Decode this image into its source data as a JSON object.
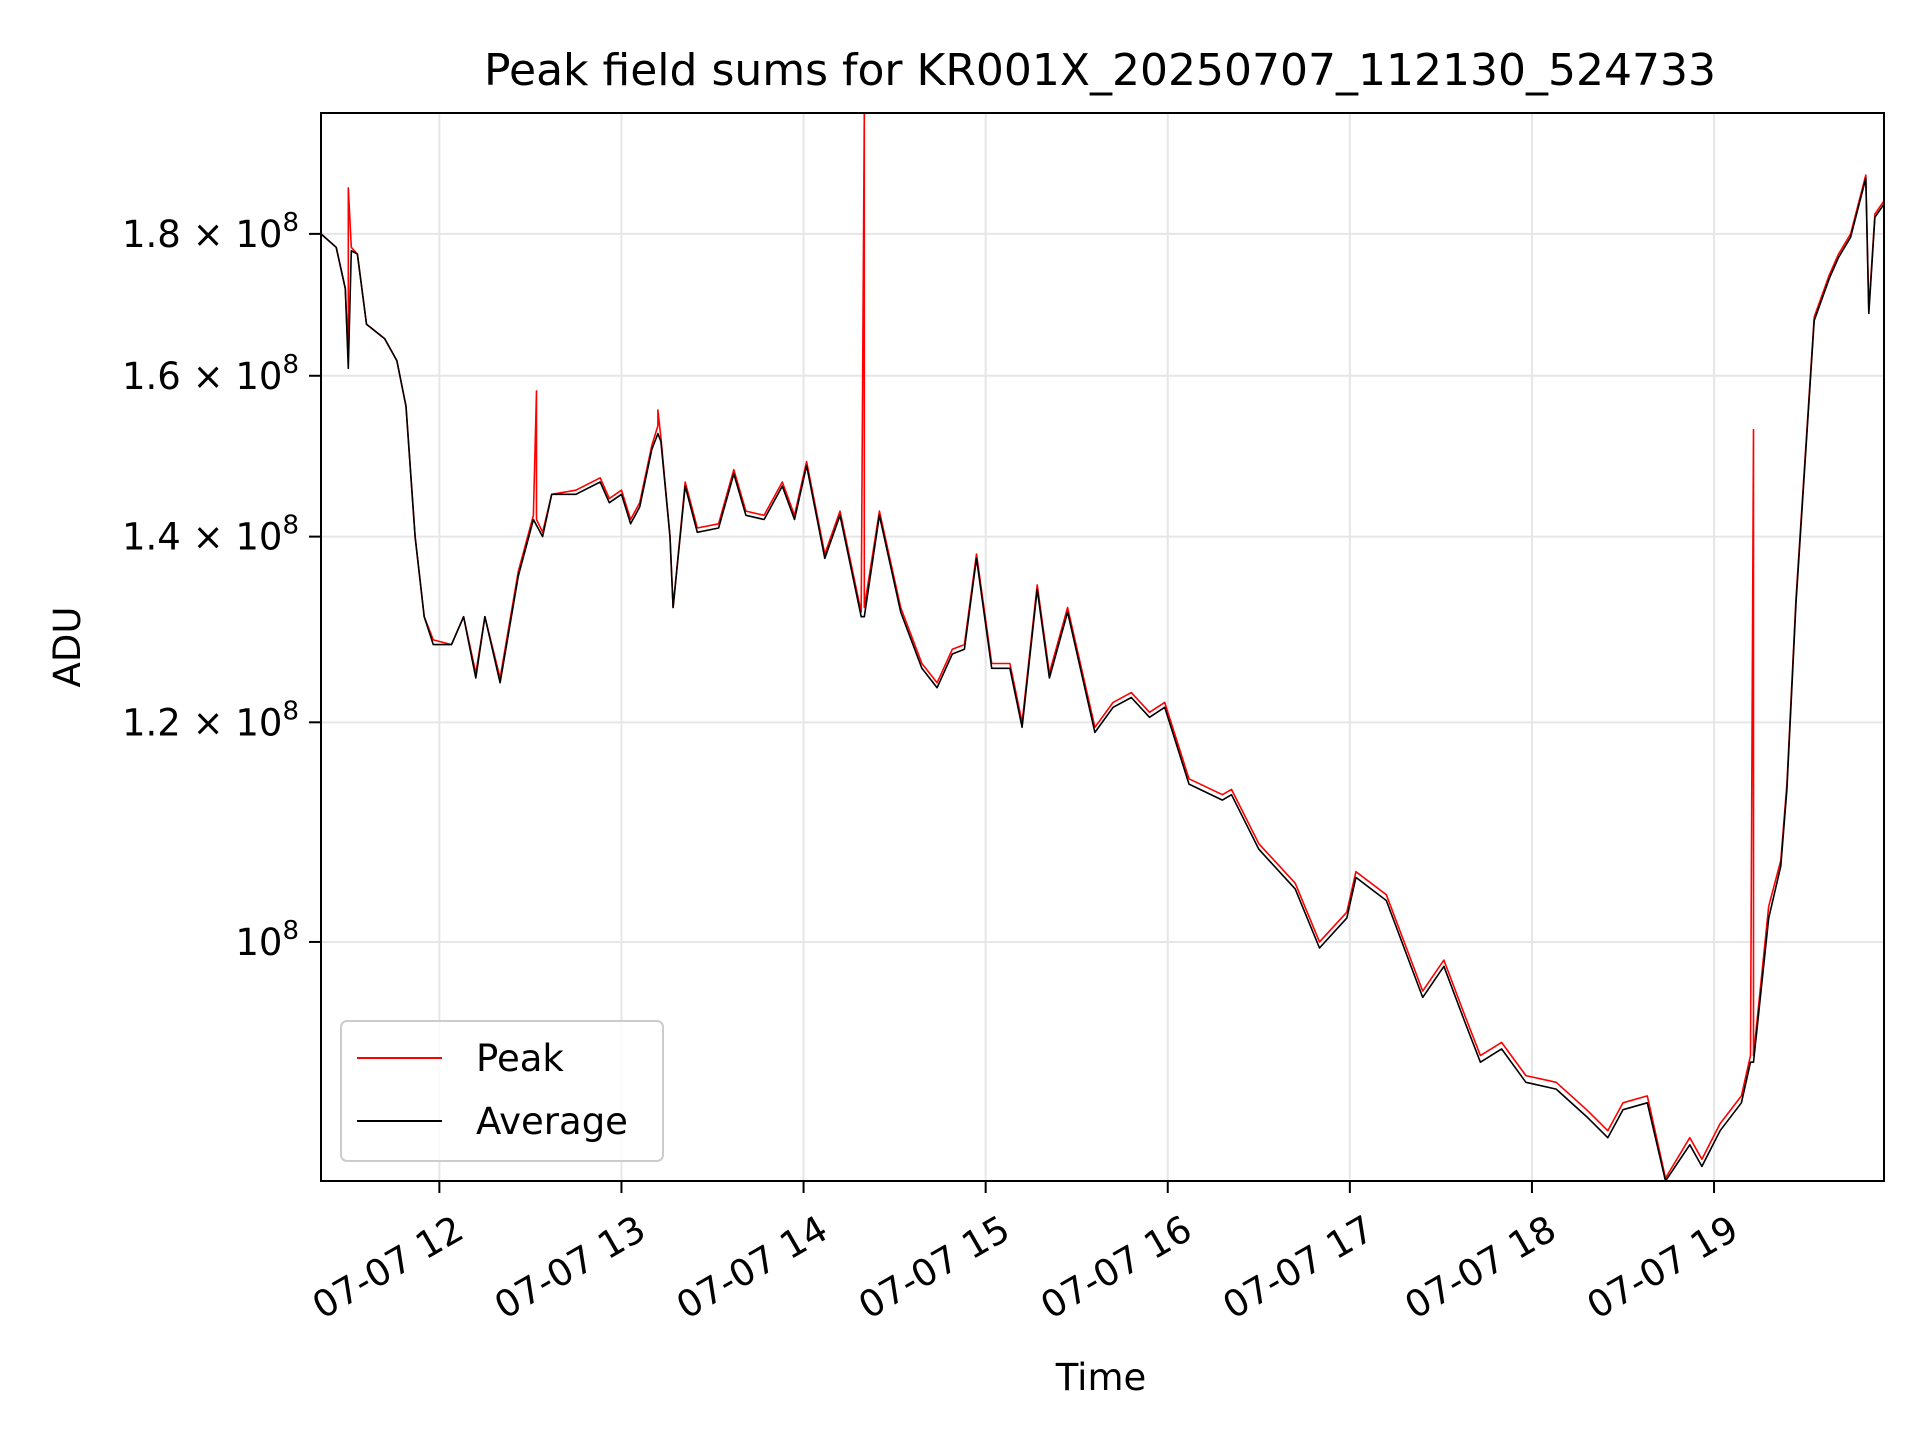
{
  "chart_data": {
    "type": "line",
    "title": "Peak field sums for KR001X_20250707_112130_524733",
    "xlabel": "Time",
    "ylabel": "ADU",
    "x_range": [
      "2025-07-07 11:21",
      "2025-07-07 19:56"
    ],
    "y_range": [
      82000000.0,
      199000000.0
    ],
    "y_scale": "log",
    "grid": true,
    "legend_position": "lower left",
    "x_ticks": [
      {
        "value": "2025-07-07 12:00",
        "label": "07-07 12"
      },
      {
        "value": "2025-07-07 13:00",
        "label": "07-07 13"
      },
      {
        "value": "2025-07-07 14:00",
        "label": "07-07 14"
      },
      {
        "value": "2025-07-07 15:00",
        "label": "07-07 15"
      },
      {
        "value": "2025-07-07 16:00",
        "label": "07-07 16"
      },
      {
        "value": "2025-07-07 17:00",
        "label": "07-07 17"
      },
      {
        "value": "2025-07-07 18:00",
        "label": "07-07 18"
      },
      {
        "value": "2025-07-07 19:00",
        "label": "07-07 19"
      }
    ],
    "y_ticks": [
      {
        "value": 100000000.0,
        "mantissa": "10",
        "exp": "8",
        "label": "10^8"
      },
      {
        "value": 120000000.0,
        "mantissa": "1.2 × 10",
        "exp": "8",
        "label": "1.2×10^8"
      },
      {
        "value": 140000000.0,
        "mantissa": "1.4 × 10",
        "exp": "8",
        "label": "1.4×10^8"
      },
      {
        "value": 160000000.0,
        "mantissa": "1.6 × 10",
        "exp": "8",
        "label": "1.6×10^8"
      },
      {
        "value": 180000000.0,
        "mantissa": "1.8 × 10",
        "exp": "8",
        "label": "1.8×10^8"
      }
    ],
    "series": [
      {
        "name": "Peak",
        "color": "#ff0000",
        "points": [
          [
            "2025-07-07 11:21",
            180000000.0
          ],
          [
            "2025-07-07 11:26",
            178000000.0
          ],
          [
            "2025-07-07 11:29",
            172000000.0
          ],
          [
            "2025-07-07 11:30",
            162000000.0
          ],
          [
            "2025-07-07 11:30",
            187000000.0
          ],
          [
            "2025-07-07 11:31",
            178000000.0
          ],
          [
            "2025-07-07 11:33",
            177000000.0
          ],
          [
            "2025-07-07 11:36",
            167000000.0
          ],
          [
            "2025-07-07 11:42",
            165000000.0
          ],
          [
            "2025-07-07 11:46",
            162000000.0
          ],
          [
            "2025-07-07 11:49",
            156000000.0
          ],
          [
            "2025-07-07 11:52",
            140000000.0
          ],
          [
            "2025-07-07 11:55",
            131000000.0
          ],
          [
            "2025-07-07 11:58",
            128500000.0
          ],
          [
            "2025-07-07 12:04",
            128000000.0
          ],
          [
            "2025-07-07 12:08",
            131000000.0
          ],
          [
            "2025-07-07 12:12",
            125000000.0
          ],
          [
            "2025-07-07 12:15",
            131000000.0
          ],
          [
            "2025-07-07 12:20",
            124500000.0
          ],
          [
            "2025-07-07 12:26",
            136000000.0
          ],
          [
            "2025-07-07 12:31",
            142500000.0
          ],
          [
            "2025-07-07 12:32",
            158000000.0
          ],
          [
            "2025-07-07 12:32",
            142000000.0
          ],
          [
            "2025-07-07 12:34",
            140500000.0
          ],
          [
            "2025-07-07 12:37",
            145000000.0
          ],
          [
            "2025-07-07 12:45",
            145500000.0
          ],
          [
            "2025-07-07 12:53",
            147000000.0
          ],
          [
            "2025-07-07 12:56",
            144500000.0
          ],
          [
            "2025-07-07 13:00",
            145500000.0
          ],
          [
            "2025-07-07 13:03",
            142000000.0
          ],
          [
            "2025-07-07 13:06",
            144000000.0
          ],
          [
            "2025-07-07 13:10",
            151000000.0
          ],
          [
            "2025-07-07 13:12",
            153500000.0
          ],
          [
            "2025-07-07 13:12",
            155500000.0
          ],
          [
            "2025-07-07 13:13",
            152000000.0
          ],
          [
            "2025-07-07 13:16",
            140000000.0
          ],
          [
            "2025-07-07 13:17",
            132000000.0
          ],
          [
            "2025-07-07 13:21",
            146500000.0
          ],
          [
            "2025-07-07 13:25",
            141000000.0
          ],
          [
            "2025-07-07 13:32",
            141500000.0
          ],
          [
            "2025-07-07 13:37",
            148000000.0
          ],
          [
            "2025-07-07 13:41",
            143000000.0
          ],
          [
            "2025-07-07 13:47",
            142500000.0
          ],
          [
            "2025-07-07 13:53",
            146500000.0
          ],
          [
            "2025-07-07 13:57",
            142500000.0
          ],
          [
            "2025-07-07 14:01",
            149000000.0
          ],
          [
            "2025-07-07 14:07",
            138000000.0
          ],
          [
            "2025-07-07 14:12",
            143000000.0
          ],
          [
            "2025-07-07 14:19",
            131500000.0
          ],
          [
            "2025-07-07 14:20",
            199000000.0
          ],
          [
            "2025-07-07 14:20",
            132000000.0
          ],
          [
            "2025-07-07 14:25",
            143000000.0
          ],
          [
            "2025-07-07 14:32",
            132000000.0
          ],
          [
            "2025-07-07 14:39",
            126000000.0
          ],
          [
            "2025-07-07 14:44",
            124000000.0
          ],
          [
            "2025-07-07 14:49",
            127500000.0
          ],
          [
            "2025-07-07 14:53",
            128000000.0
          ],
          [
            "2025-07-07 14:57",
            138000000.0
          ],
          [
            "2025-07-07 15:02",
            126000000.0
          ],
          [
            "2025-07-07 15:08",
            126000000.0
          ],
          [
            "2025-07-07 15:12",
            120000000.0
          ],
          [
            "2025-07-07 15:17",
            134500000.0
          ],
          [
            "2025-07-07 15:21",
            125000000.0
          ],
          [
            "2025-07-07 15:27",
            132000000.0
          ],
          [
            "2025-07-07 15:36",
            119500000.0
          ],
          [
            "2025-07-07 15:42",
            122000000.0
          ],
          [
            "2025-07-07 15:48",
            123000000.0
          ],
          [
            "2025-07-07 15:54",
            121000000.0
          ],
          [
            "2025-07-07 15:59",
            122000000.0
          ],
          [
            "2025-07-07 16:07",
            114500000.0
          ],
          [
            "2025-07-07 16:18",
            113000000.0
          ],
          [
            "2025-07-07 16:21",
            113500000.0
          ],
          [
            "2025-07-07 16:30",
            108500000.0
          ],
          [
            "2025-07-07 16:42",
            105000000.0
          ],
          [
            "2025-07-07 16:50",
            100000000.0
          ],
          [
            "2025-07-07 16:59",
            102500000.0
          ],
          [
            "2025-07-07 17:02",
            106000000.0
          ],
          [
            "2025-07-07 17:12",
            104000000.0
          ],
          [
            "2025-07-07 17:24",
            96000000.0
          ],
          [
            "2025-07-07 17:31",
            98500000.0
          ],
          [
            "2025-07-07 17:38",
            94000000.0
          ],
          [
            "2025-07-07 17:43",
            91000000.0
          ],
          [
            "2025-07-07 17:50",
            92000000.0
          ],
          [
            "2025-07-07 17:58",
            89500000.0
          ],
          [
            "2025-07-07 18:08",
            89000000.0
          ],
          [
            "2025-07-07 18:18",
            87000000.0
          ],
          [
            "2025-07-07 18:25",
            85500000.0
          ],
          [
            "2025-07-07 18:30",
            87500000.0
          ],
          [
            "2025-07-07 18:38",
            88000000.0
          ],
          [
            "2025-07-07 18:44",
            82200000.0
          ],
          [
            "2025-07-07 18:52",
            85000000.0
          ],
          [
            "2025-07-07 18:56",
            83500000.0
          ],
          [
            "2025-07-07 19:02",
            86000000.0
          ],
          [
            "2025-07-07 19:09",
            88000000.0
          ],
          [
            "2025-07-07 19:12",
            91000000.0
          ],
          [
            "2025-07-07 19:13",
            153000000.0
          ],
          [
            "2025-07-07 19:13",
            91000000.0
          ],
          [
            "2025-07-07 19:18",
            103000000.0
          ],
          [
            "2025-07-07 19:22",
            107000000.0
          ],
          [
            "2025-07-07 19:24",
            114000000.0
          ],
          [
            "2025-07-07 19:27",
            133000000.0
          ],
          [
            "2025-07-07 19:33",
            168000000.0
          ],
          [
            "2025-07-07 19:38",
            174000000.0
          ],
          [
            "2025-07-07 19:41",
            177000000.0
          ],
          [
            "2025-07-07 19:45",
            180000000.0
          ],
          [
            "2025-07-07 19:50",
            189000000.0
          ],
          [
            "2025-07-07 19:51",
            169000000.0
          ],
          [
            "2025-07-07 19:53",
            183000000.0
          ],
          [
            "2025-07-07 19:56",
            185000000.0
          ]
        ]
      },
      {
        "name": "Average",
        "color": "#000000",
        "points": [
          [
            "2025-07-07 11:21",
            180000000.0
          ],
          [
            "2025-07-07 11:26",
            178000000.0
          ],
          [
            "2025-07-07 11:29",
            172000000.0
          ],
          [
            "2025-07-07 11:30",
            161000000.0
          ],
          [
            "2025-07-07 11:31",
            177500000.0
          ],
          [
            "2025-07-07 11:33",
            177000000.0
          ],
          [
            "2025-07-07 11:36",
            167000000.0
          ],
          [
            "2025-07-07 11:42",
            165000000.0
          ],
          [
            "2025-07-07 11:46",
            162000000.0
          ],
          [
            "2025-07-07 11:49",
            156000000.0
          ],
          [
            "2025-07-07 11:52",
            140000000.0
          ],
          [
            "2025-07-07 11:55",
            131000000.0
          ],
          [
            "2025-07-07 11:58",
            128000000.0
          ],
          [
            "2025-07-07 12:04",
            128000000.0
          ],
          [
            "2025-07-07 12:08",
            131000000.0
          ],
          [
            "2025-07-07 12:12",
            124500000.0
          ],
          [
            "2025-07-07 12:15",
            131000000.0
          ],
          [
            "2025-07-07 12:20",
            124000000.0
          ],
          [
            "2025-07-07 12:26",
            135500000.0
          ],
          [
            "2025-07-07 12:31",
            142000000.0
          ],
          [
            "2025-07-07 12:34",
            140000000.0
          ],
          [
            "2025-07-07 12:37",
            145000000.0
          ],
          [
            "2025-07-07 12:45",
            145000000.0
          ],
          [
            "2025-07-07 12:53",
            146500000.0
          ],
          [
            "2025-07-07 12:56",
            144000000.0
          ],
          [
            "2025-07-07 13:00",
            145000000.0
          ],
          [
            "2025-07-07 13:03",
            141500000.0
          ],
          [
            "2025-07-07 13:06",
            143500000.0
          ],
          [
            "2025-07-07 13:10",
            150500000.0
          ],
          [
            "2025-07-07 13:12",
            152500000.0
          ],
          [
            "2025-07-07 13:13",
            151500000.0
          ],
          [
            "2025-07-07 13:16",
            140000000.0
          ],
          [
            "2025-07-07 13:17",
            132000000.0
          ],
          [
            "2025-07-07 13:21",
            146000000.0
          ],
          [
            "2025-07-07 13:25",
            140500000.0
          ],
          [
            "2025-07-07 13:32",
            141000000.0
          ],
          [
            "2025-07-07 13:37",
            147500000.0
          ],
          [
            "2025-07-07 13:41",
            142500000.0
          ],
          [
            "2025-07-07 13:47",
            142000000.0
          ],
          [
            "2025-07-07 13:53",
            146000000.0
          ],
          [
            "2025-07-07 13:57",
            142000000.0
          ],
          [
            "2025-07-07 14:01",
            148500000.0
          ],
          [
            "2025-07-07 14:07",
            137500000.0
          ],
          [
            "2025-07-07 14:12",
            142500000.0
          ],
          [
            "2025-07-07 14:19",
            131000000.0
          ],
          [
            "2025-07-07 14:20",
            131000000.0
          ],
          [
            "2025-07-07 14:25",
            142500000.0
          ],
          [
            "2025-07-07 14:32",
            131500000.0
          ],
          [
            "2025-07-07 14:39",
            125500000.0
          ],
          [
            "2025-07-07 14:44",
            123500000.0
          ],
          [
            "2025-07-07 14:49",
            127000000.0
          ],
          [
            "2025-07-07 14:53",
            127500000.0
          ],
          [
            "2025-07-07 14:57",
            137500000.0
          ],
          [
            "2025-07-07 15:02",
            125500000.0
          ],
          [
            "2025-07-07 15:08",
            125500000.0
          ],
          [
            "2025-07-07 15:12",
            119500000.0
          ],
          [
            "2025-07-07 15:17",
            134000000.0
          ],
          [
            "2025-07-07 15:21",
            124500000.0
          ],
          [
            "2025-07-07 15:27",
            131500000.0
          ],
          [
            "2025-07-07 15:36",
            119000000.0
          ],
          [
            "2025-07-07 15:42",
            121500000.0
          ],
          [
            "2025-07-07 15:48",
            122500000.0
          ],
          [
            "2025-07-07 15:54",
            120500000.0
          ],
          [
            "2025-07-07 15:59",
            121500000.0
          ],
          [
            "2025-07-07 16:07",
            114000000.0
          ],
          [
            "2025-07-07 16:18",
            112500000.0
          ],
          [
            "2025-07-07 16:21",
            113000000.0
          ],
          [
            "2025-07-07 16:30",
            108000000.0
          ],
          [
            "2025-07-07 16:42",
            104500000.0
          ],
          [
            "2025-07-07 16:50",
            99500000.0
          ],
          [
            "2025-07-07 16:59",
            102000000.0
          ],
          [
            "2025-07-07 17:02",
            105500000.0
          ],
          [
            "2025-07-07 17:12",
            103500000.0
          ],
          [
            "2025-07-07 17:24",
            95500000.0
          ],
          [
            "2025-07-07 17:31",
            98000000.0
          ],
          [
            "2025-07-07 17:38",
            93500000.0
          ],
          [
            "2025-07-07 17:43",
            90500000.0
          ],
          [
            "2025-07-07 17:50",
            91500000.0
          ],
          [
            "2025-07-07 17:58",
            89000000.0
          ],
          [
            "2025-07-07 18:08",
            88500000.0
          ],
          [
            "2025-07-07 18:18",
            86500000.0
          ],
          [
            "2025-07-07 18:25",
            85000000.0
          ],
          [
            "2025-07-07 18:30",
            87000000.0
          ],
          [
            "2025-07-07 18:38",
            87500000.0
          ],
          [
            "2025-07-07 18:44",
            82000000.0
          ],
          [
            "2025-07-07 18:52",
            84500000.0
          ],
          [
            "2025-07-07 18:56",
            83000000.0
          ],
          [
            "2025-07-07 19:02",
            85500000.0
          ],
          [
            "2025-07-07 19:09",
            87500000.0
          ],
          [
            "2025-07-07 19:12",
            90500000.0
          ],
          [
            "2025-07-07 19:13",
            90500000.0
          ],
          [
            "2025-07-07 19:18",
            102000000.0
          ],
          [
            "2025-07-07 19:22",
            106500000.0
          ],
          [
            "2025-07-07 19:24",
            113500000.0
          ],
          [
            "2025-07-07 19:27",
            132500000.0
          ],
          [
            "2025-07-07 19:33",
            167500000.0
          ],
          [
            "2025-07-07 19:38",
            173500000.0
          ],
          [
            "2025-07-07 19:41",
            176500000.0
          ],
          [
            "2025-07-07 19:45",
            179500000.0
          ],
          [
            "2025-07-07 19:50",
            188500000.0
          ],
          [
            "2025-07-07 19:51",
            168500000.0
          ],
          [
            "2025-07-07 19:53",
            182500000.0
          ],
          [
            "2025-07-07 19:56",
            184500000.0
          ]
        ]
      }
    ]
  }
}
